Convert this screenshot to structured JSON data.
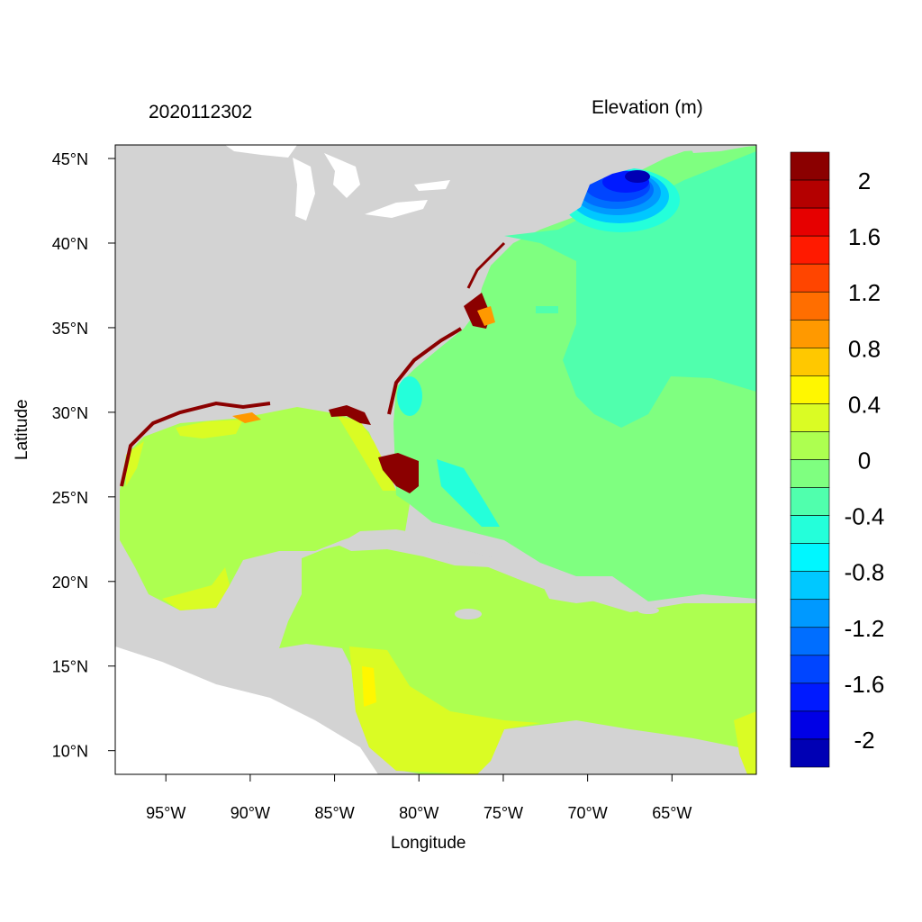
{
  "title_left": "2020112302",
  "title_right": "Elevation (m)",
  "chart_data": {
    "type": "heatmap",
    "title": "2020112302",
    "variable": "Elevation (m)",
    "xlabel": "Longitude",
    "ylabel": "Latitude",
    "xlim": [
      -98,
      -60
    ],
    "ylim": [
      8.6,
      45.8
    ],
    "x_ticks": [
      {
        "value": -95,
        "label": "95°W"
      },
      {
        "value": -90,
        "label": "90°W"
      },
      {
        "value": -85,
        "label": "85°W"
      },
      {
        "value": -80,
        "label": "80°W"
      },
      {
        "value": -75,
        "label": "75°W"
      },
      {
        "value": -70,
        "label": "70°W"
      },
      {
        "value": -65,
        "label": "65°W"
      }
    ],
    "y_ticks": [
      {
        "value": 10,
        "label": "10°N"
      },
      {
        "value": 15,
        "label": "15°N"
      },
      {
        "value": 20,
        "label": "20°N"
      },
      {
        "value": 25,
        "label": "25°N"
      },
      {
        "value": 30,
        "label": "30°N"
      },
      {
        "value": 35,
        "label": "35°N"
      },
      {
        "value": 40,
        "label": "40°N"
      },
      {
        "value": 45,
        "label": "45°N"
      }
    ],
    "colorbar": {
      "colors": [
        "#8B0000",
        "#B40000",
        "#E60000",
        "#FF1A00",
        "#FF4500",
        "#FF6E00",
        "#FF9900",
        "#FFC800",
        "#FFF700",
        "#DAFC24",
        "#ADFF50",
        "#7FFF80",
        "#50FFAD",
        "#24FFDA",
        "#00F7FF",
        "#00C8FF",
        "#0099FF",
        "#006EFF",
        "#0045FF",
        "#001AFF",
        "#0000E6",
        "#0000B4"
      ],
      "boundaries": [
        2.0,
        1.8,
        1.6,
        1.4,
        1.2,
        1.0,
        0.8,
        0.6,
        0.4,
        0.2,
        0.0,
        -0.2,
        -0.4,
        -0.6,
        -0.8,
        -1.0,
        -1.2,
        -1.4,
        -1.6,
        -1.8,
        -2.0
      ],
      "labels": [
        "2",
        "1.6",
        "1.2",
        "0.8",
        "0.4",
        "0",
        "-0.4",
        "-0.8",
        "-1.2",
        "-1.6",
        "-2"
      ]
    },
    "land_color": "#D3D3D3"
  }
}
